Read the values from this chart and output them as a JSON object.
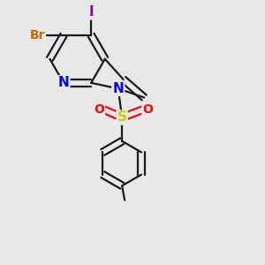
{
  "background_color": "#e8e8e8",
  "bond_color": "#1a1a1a",
  "bond_width": 1.6,
  "atom_colors": {
    "N": "#0000ff",
    "Br": "#cc6600",
    "I": "#990099",
    "S": "#cccc00",
    "O": "#ff0000",
    "C": "#1a1a1a"
  },
  "font_size_atoms": 10,
  "figsize": [
    3.0,
    3.0
  ],
  "dpi": 100
}
